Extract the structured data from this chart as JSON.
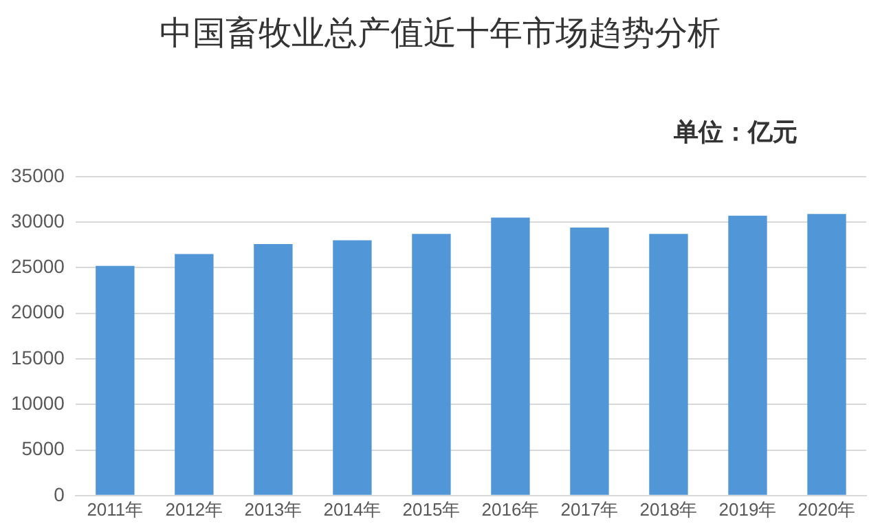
{
  "chart_data": {
    "type": "bar",
    "title": "中国畜牧业总产值近十年市场趋势分析",
    "annotations": [
      "单位：亿元"
    ],
    "categories": [
      "2011年",
      "2012年",
      "2013年",
      "2014年",
      "2015年",
      "2016年",
      "2017年",
      "2018年",
      "2019年",
      "2020年"
    ],
    "values": [
      25200,
      26500,
      27600,
      28000,
      28700,
      30500,
      29400,
      28700,
      30700,
      30900
    ],
    "color": "#5196d6",
    "ylim": [
      0,
      35000
    ],
    "yticks": [
      0,
      5000,
      10000,
      15000,
      20000,
      25000,
      30000,
      35000
    ],
    "grid": "y",
    "legend": false
  }
}
